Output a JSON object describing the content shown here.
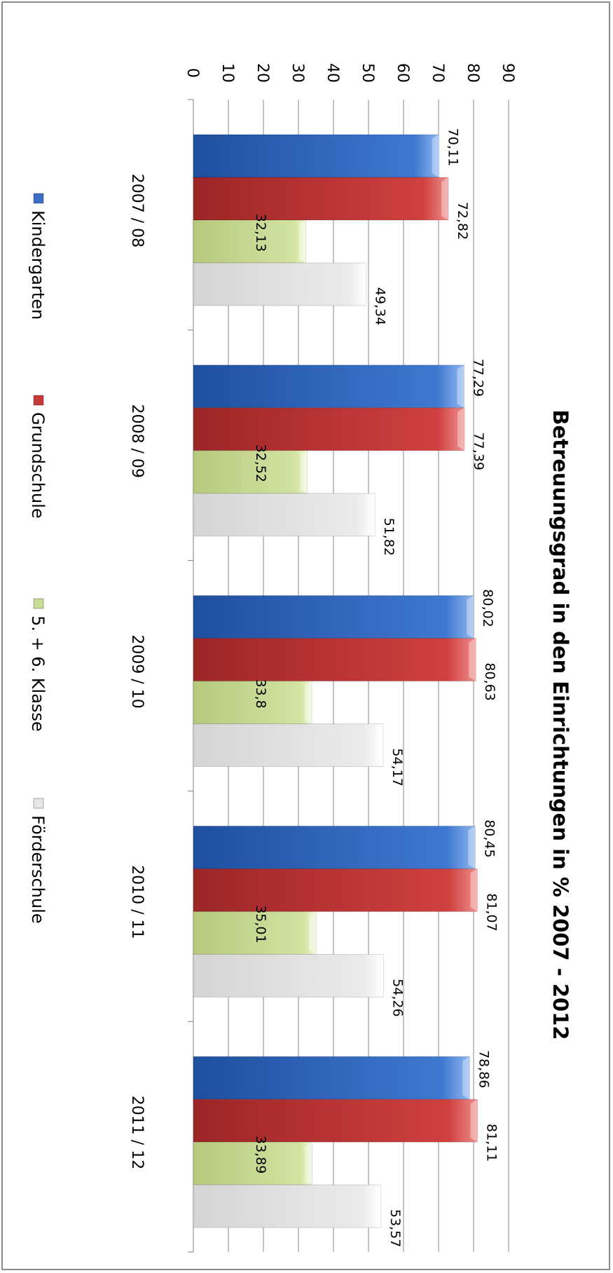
{
  "chart_data": {
    "type": "bar",
    "orientation": "horizontal",
    "rotation": "90deg-clockwise",
    "title": "Betreuungsgrad in den Einrichtungen in % 2007 - 2012",
    "categories": [
      "2007 / 08",
      "2008 / 09",
      "2009 / 10",
      "2010 / 11",
      "2011 / 12"
    ],
    "series": [
      {
        "name": "Kindergarten",
        "color": "#3a6fc4",
        "values": [
          70.11,
          77.29,
          80.02,
          80.45,
          78.86
        ],
        "labels": [
          "70,11",
          "77,29",
          "80,02",
          "80,45",
          "78,86"
        ]
      },
      {
        "name": "Grundschule",
        "color": "#c8393a",
        "values": [
          72.82,
          77.39,
          80.63,
          81.07,
          81.11
        ],
        "labels": [
          "72,82",
          "77,39",
          "80,63",
          "81,07",
          "81,11"
        ]
      },
      {
        "name": "5. + 6. Klasse",
        "color": "#c9dc94",
        "values": [
          32.13,
          32.52,
          33.8,
          35.01,
          33.89
        ],
        "labels": [
          "32,13",
          "32,52",
          "33,8",
          "35,01",
          "33,89"
        ]
      },
      {
        "name": "Förderschule",
        "color": "#e6e6e6",
        "values": [
          49.34,
          51.82,
          54.17,
          54.26,
          53.57
        ],
        "labels": [
          "49,34",
          "51,82",
          "54,17",
          "54,26",
          "53,57"
        ]
      }
    ],
    "value_axis": {
      "min": 0,
      "max": 90,
      "step": 10,
      "ticks": [
        "0",
        "10",
        "20",
        "30",
        "40",
        "50",
        "60",
        "70",
        "80",
        "90"
      ]
    },
    "grid": true,
    "legend_position": "bottom"
  }
}
